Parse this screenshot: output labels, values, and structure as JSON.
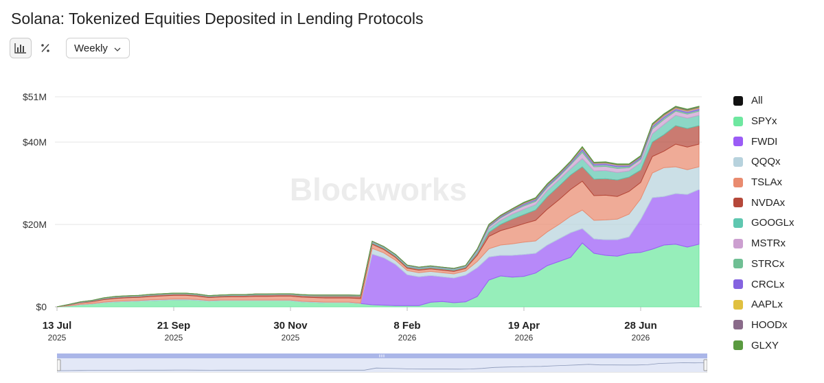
{
  "title": "Solana: Tokenized Equities Deposited in Lending Protocols",
  "toolbar": {
    "buttons": [
      {
        "name": "bar-chart-button",
        "icon": "bar-chart-icon",
        "active": true
      },
      {
        "name": "percent-button",
        "icon": "percent-icon",
        "active": false
      }
    ],
    "interval": "Weekly"
  },
  "watermark": "Blockworks",
  "colors": {
    "grid": "#e6e6e6",
    "axis_text": "#333333",
    "navigator_fill": "#e3e8f7",
    "navigator_handle": "#aab6e8"
  },
  "legend": [
    {
      "label": "All",
      "color": "#111111"
    },
    {
      "label": "SPYx",
      "color": "#6ee7a0"
    },
    {
      "label": "FWDI",
      "color": "#9b5cf6"
    },
    {
      "label": "QQQx",
      "color": "#b7d2dd"
    },
    {
      "label": "TSLAx",
      "color": "#e98b6f"
    },
    {
      "label": "NVDAx",
      "color": "#b5483a"
    },
    {
      "label": "GOOGLx",
      "color": "#5fc7b0"
    },
    {
      "label": "MSTRx",
      "color": "#cc9fd0"
    },
    {
      "label": "STRCx",
      "color": "#6fbf94"
    },
    {
      "label": "CRCLx",
      "color": "#8463e0"
    },
    {
      "label": "AAPLx",
      "color": "#e0c040"
    },
    {
      "label": "HOODx",
      "color": "#8a6b8a"
    },
    {
      "label": "GLXY",
      "color": "#5a9a40"
    }
  ],
  "chart_data": {
    "type": "area",
    "stacked": true,
    "y_ticks": [
      {
        "value": 0,
        "label": "$0"
      },
      {
        "value": 20,
        "label": "$20M"
      },
      {
        "value": 40,
        "label": "$40M"
      },
      {
        "value": 51,
        "label": "$51M"
      }
    ],
    "ylim": [
      0,
      51
    ],
    "y_unit": "$M",
    "x_ticks": [
      {
        "index": 0,
        "label": "13 Jul",
        "year": "2025"
      },
      {
        "index": 10,
        "label": "21 Sep",
        "year": "2025"
      },
      {
        "index": 20,
        "label": "30 Nov",
        "year": "2025"
      },
      {
        "index": 30,
        "label": "8 Feb",
        "year": "2026"
      },
      {
        "index": 40,
        "label": "19 Apr",
        "year": "2026"
      },
      {
        "index": 50,
        "label": "28 Jun",
        "year": "2026"
      }
    ],
    "x_start": "2025-07-13",
    "x_step": "1 week",
    "series": [
      {
        "name": "SPYx",
        "values": [
          0,
          0.2,
          0.5,
          0.7,
          1.0,
          1.2,
          1.3,
          1.4,
          1.5,
          1.6,
          1.7,
          1.7,
          1.6,
          1.4,
          1.5,
          1.5,
          1.5,
          1.5,
          1.5,
          1.5,
          1.5,
          1.2,
          1.1,
          1.0,
          1.0,
          1.0,
          0.8,
          0.5,
          0.4,
          0.3,
          0.3,
          0.3,
          1.1,
          1.3,
          1.0,
          1.2,
          2.5,
          6.5,
          7.5,
          7.2,
          7.4,
          8.2,
          10.0,
          11.0,
          12.0,
          15.5,
          13.0,
          12.5,
          12.3,
          13.0,
          13.2,
          14.0,
          15.0,
          15.2,
          14.5,
          15.2
        ]
      },
      {
        "name": "FWDI",
        "values": [
          0,
          0,
          0,
          0,
          0,
          0,
          0,
          0,
          0,
          0,
          0,
          0,
          0,
          0,
          0,
          0,
          0,
          0,
          0,
          0,
          0,
          0,
          0,
          0,
          0,
          0,
          0,
          12.3,
          11.5,
          10.0,
          7.5,
          7.0,
          6.5,
          6.0,
          6.0,
          6.5,
          7.0,
          5.6,
          5.0,
          5.3,
          5.3,
          4.8,
          5.0,
          5.5,
          6.0,
          3.5,
          3.5,
          3.8,
          4.0,
          4.0,
          8.0,
          12.5,
          11.8,
          12.3,
          12.8,
          13.3
        ]
      },
      {
        "name": "QQQx",
        "values": [
          0,
          0.05,
          0.1,
          0.1,
          0.15,
          0.15,
          0.15,
          0.15,
          0.2,
          0.2,
          0.2,
          0.2,
          0.2,
          0.15,
          0.15,
          0.15,
          0.15,
          0.15,
          0.15,
          0.15,
          0.15,
          0.15,
          0.15,
          0.15,
          0.15,
          0.15,
          0.1,
          1.4,
          1.2,
          1.0,
          1.0,
          1.0,
          1.0,
          1.0,
          1.0,
          1.0,
          1.5,
          2.0,
          2.5,
          2.8,
          3.0,
          3.0,
          3.2,
          3.5,
          4.0,
          4.5,
          4.5,
          4.8,
          5.0,
          5.5,
          5.0,
          6.0,
          7.0,
          6.5,
          6.0,
          5.5
        ]
      },
      {
        "name": "TSLAx",
        "values": [
          0,
          0.2,
          0.35,
          0.45,
          0.6,
          0.7,
          0.75,
          0.75,
          0.8,
          0.85,
          0.9,
          0.9,
          0.8,
          0.7,
          0.75,
          0.8,
          0.8,
          0.9,
          0.9,
          0.95,
          0.95,
          1.0,
          1.0,
          1.0,
          1.0,
          1.0,
          1.1,
          1.0,
          0.8,
          0.7,
          0.6,
          0.6,
          0.6,
          0.6,
          0.6,
          0.6,
          1.5,
          3.0,
          3.5,
          4.0,
          4.5,
          5.0,
          5.5,
          6.0,
          6.5,
          7.0,
          6.0,
          6.0,
          5.5,
          5.5,
          4.0,
          4.0,
          4.0,
          5.5,
          5.5,
          5.5
        ]
      },
      {
        "name": "NVDAx",
        "values": [
          0,
          0.05,
          0.1,
          0.15,
          0.2,
          0.25,
          0.25,
          0.25,
          0.3,
          0.3,
          0.3,
          0.3,
          0.3,
          0.25,
          0.25,
          0.3,
          0.3,
          0.35,
          0.35,
          0.35,
          0.35,
          0.4,
          0.4,
          0.5,
          0.5,
          0.5,
          0.6,
          0.3,
          0.3,
          0.3,
          0.3,
          0.3,
          0.3,
          0.3,
          0.3,
          0.3,
          0.5,
          1.0,
          1.5,
          2.0,
          2.2,
          2.5,
          3.0,
          3.3,
          3.5,
          3.5,
          4.0,
          4.0,
          4.0,
          3.5,
          3.0,
          3.5,
          4.0,
          4.5,
          4.5,
          4.5
        ]
      },
      {
        "name": "GOOGLx",
        "values": [
          0,
          0.02,
          0.05,
          0.05,
          0.1,
          0.1,
          0.1,
          0.1,
          0.1,
          0.1,
          0.1,
          0.1,
          0.1,
          0.1,
          0.1,
          0.1,
          0.1,
          0.1,
          0.1,
          0.1,
          0.1,
          0.1,
          0.1,
          0.1,
          0.1,
          0.1,
          0.1,
          0.2,
          0.2,
          0.2,
          0.2,
          0.2,
          0.2,
          0.2,
          0.2,
          0.2,
          0.4,
          0.8,
          1.0,
          1.2,
          1.3,
          1.3,
          1.5,
          1.5,
          1.5,
          2.0,
          2.0,
          2.0,
          1.8,
          1.5,
          1.8,
          2.0,
          2.5,
          2.5,
          2.5,
          2.5
        ]
      },
      {
        "name": "MSTRx",
        "values": [
          0,
          0.02,
          0.05,
          0.05,
          0.05,
          0.05,
          0.05,
          0.05,
          0.05,
          0.05,
          0.05,
          0.05,
          0.05,
          0.05,
          0.05,
          0.05,
          0.05,
          0.05,
          0.05,
          0.05,
          0.05,
          0.05,
          0.05,
          0.05,
          0.05,
          0.05,
          0.05,
          0.1,
          0.1,
          0.1,
          0.1,
          0.1,
          0.1,
          0.1,
          0.1,
          0.1,
          0.3,
          0.5,
          0.6,
          0.7,
          0.8,
          0.8,
          0.8,
          0.8,
          1.0,
          1.5,
          1.0,
          1.0,
          1.0,
          0.8,
          0.8,
          1.2,
          1.2,
          1.0,
          1.0,
          1.0
        ]
      },
      {
        "name": "STRCx",
        "values": [
          0,
          0.01,
          0.02,
          0.02,
          0.03,
          0.03,
          0.03,
          0.03,
          0.03,
          0.03,
          0.03,
          0.03,
          0.03,
          0.03,
          0.03,
          0.03,
          0.03,
          0.03,
          0.03,
          0.03,
          0.03,
          0.03,
          0.03,
          0.03,
          0.03,
          0.03,
          0.03,
          0.05,
          0.05,
          0.05,
          0.05,
          0.05,
          0.05,
          0.05,
          0.05,
          0.05,
          0.1,
          0.2,
          0.2,
          0.2,
          0.3,
          0.3,
          0.3,
          0.3,
          0.3,
          0.5,
          0.4,
          0.4,
          0.4,
          0.3,
          0.3,
          0.4,
          0.4,
          0.3,
          0.3,
          0.3
        ]
      },
      {
        "name": "CRCLx",
        "values": [
          0,
          0.01,
          0.01,
          0.02,
          0.02,
          0.02,
          0.02,
          0.02,
          0.02,
          0.02,
          0.02,
          0.02,
          0.02,
          0.02,
          0.02,
          0.02,
          0.02,
          0.02,
          0.02,
          0.02,
          0.02,
          0.02,
          0.02,
          0.02,
          0.02,
          0.02,
          0.02,
          0.05,
          0.05,
          0.05,
          0.05,
          0.05,
          0.05,
          0.05,
          0.05,
          0.05,
          0.1,
          0.2,
          0.2,
          0.2,
          0.3,
          0.3,
          0.3,
          0.3,
          0.3,
          0.5,
          0.4,
          0.4,
          0.4,
          0.3,
          0.3,
          0.4,
          0.5,
          0.4,
          0.4,
          0.4
        ]
      },
      {
        "name": "AAPLx",
        "values": [
          0,
          0.01,
          0.01,
          0.01,
          0.01,
          0.01,
          0.01,
          0.01,
          0.01,
          0.01,
          0.01,
          0.01,
          0.01,
          0.01,
          0.01,
          0.01,
          0.01,
          0.01,
          0.01,
          0.01,
          0.01,
          0.01,
          0.01,
          0.01,
          0.01,
          0.01,
          0.01,
          0.02,
          0.02,
          0.02,
          0.02,
          0.02,
          0.02,
          0.02,
          0.02,
          0.02,
          0.05,
          0.1,
          0.1,
          0.1,
          0.1,
          0.1,
          0.1,
          0.1,
          0.1,
          0.2,
          0.1,
          0.1,
          0.1,
          0.1,
          0.1,
          0.2,
          0.2,
          0.2,
          0.2,
          0.2
        ]
      },
      {
        "name": "HOODx",
        "values": [
          0,
          0.01,
          0.01,
          0.01,
          0.01,
          0.01,
          0.01,
          0.01,
          0.01,
          0.01,
          0.01,
          0.01,
          0.01,
          0.01,
          0.01,
          0.01,
          0.01,
          0.01,
          0.01,
          0.01,
          0.01,
          0.01,
          0.01,
          0.01,
          0.01,
          0.01,
          0.01,
          0.02,
          0.02,
          0.02,
          0.02,
          0.02,
          0.02,
          0.02,
          0.02,
          0.02,
          0.05,
          0.1,
          0.1,
          0.1,
          0.1,
          0.1,
          0.1,
          0.1,
          0.1,
          0.1,
          0.1,
          0.1,
          0.1,
          0.1,
          0.1,
          0.2,
          0.2,
          0.2,
          0.2,
          0.2
        ]
      },
      {
        "name": "GLXY",
        "values": [
          0,
          0.01,
          0.01,
          0.01,
          0.01,
          0.01,
          0.01,
          0.01,
          0.01,
          0.01,
          0.01,
          0.01,
          0.01,
          0.01,
          0.01,
          0.01,
          0.01,
          0.01,
          0.01,
          0.01,
          0.01,
          0.01,
          0.01,
          0.01,
          0.01,
          0.01,
          0.01,
          0.01,
          0.01,
          0.01,
          0.01,
          0.01,
          0.01,
          0.01,
          0.01,
          0.01,
          0.05,
          0.05,
          0.05,
          0.05,
          0.1,
          0.1,
          0.1,
          0.1,
          0.1,
          0.1,
          0.1,
          0.1,
          0.1,
          0.1,
          0.1,
          0.1,
          0.1,
          0.1,
          0.1,
          0.1
        ]
      }
    ]
  }
}
